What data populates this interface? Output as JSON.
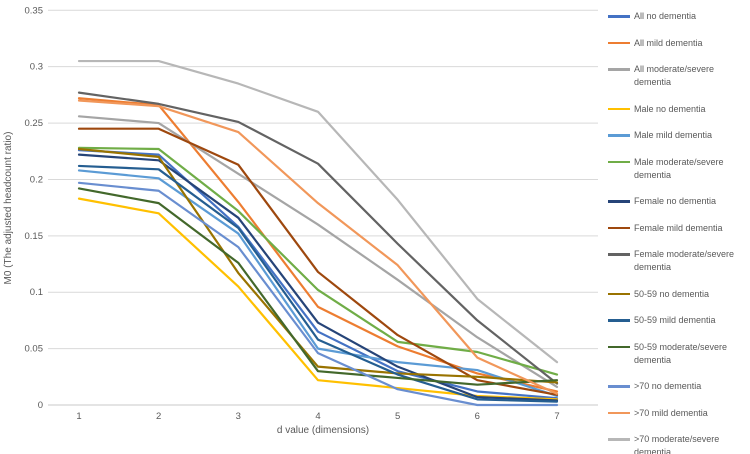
{
  "chart_data": {
    "type": "line",
    "title": "",
    "xlabel": "d value (dimensions)",
    "ylabel": "M0 (The adjusted headcount ratio)",
    "categories": [
      1,
      2,
      3,
      4,
      5,
      6,
      7
    ],
    "x_tick_labels": [
      "1",
      "2",
      "3",
      "4",
      "5",
      "6",
      "7"
    ],
    "y_tick_labels": [
      "0",
      "0.05",
      "0.1",
      "0.15",
      "0.2",
      "0.25",
      "0.3",
      "0.35"
    ],
    "ylim": [
      0,
      0.35
    ],
    "y_tick_step": 0.05,
    "grid": "horizontal",
    "legend_position": "right",
    "series": [
      {
        "name": "All no dementia",
        "color": "#4472C4",
        "values": [
          0.226,
          0.222,
          0.158,
          0.065,
          0.03,
          0.012,
          0.006
        ]
      },
      {
        "name": "All mild dementia",
        "color": "#ED7D31",
        "values": [
          0.272,
          0.266,
          0.18,
          0.087,
          0.052,
          0.028,
          0.012
        ]
      },
      {
        "name": "All moderate/severe dementia",
        "color": "#A5A5A5",
        "values": [
          0.256,
          0.25,
          0.205,
          0.16,
          0.111,
          0.06,
          0.016
        ]
      },
      {
        "name": "Male no dementia",
        "color": "#FFC000",
        "values": [
          0.183,
          0.17,
          0.105,
          0.022,
          0.015,
          0.008,
          0.005
        ]
      },
      {
        "name": "Male mild dementia",
        "color": "#5B9BD5",
        "values": [
          0.208,
          0.201,
          0.152,
          0.05,
          0.038,
          0.031,
          0.008
        ]
      },
      {
        "name": "Male moderate/severe dementia",
        "color": "#70AD47",
        "values": [
          0.228,
          0.227,
          0.172,
          0.102,
          0.056,
          0.047,
          0.027
        ]
      },
      {
        "name": "Female no dementia",
        "color": "#264478",
        "values": [
          0.222,
          0.217,
          0.166,
          0.073,
          0.034,
          0.007,
          0.004
        ]
      },
      {
        "name": "Female mild dementia",
        "color": "#9E480E",
        "values": [
          0.245,
          0.245,
          0.213,
          0.118,
          0.062,
          0.022,
          0.009
        ]
      },
      {
        "name": "Female moderate/severe dementia",
        "color": "#636363",
        "values": [
          0.277,
          0.267,
          0.251,
          0.214,
          0.143,
          0.075,
          0.019
        ]
      },
      {
        "name": "50-59 no dementia",
        "color": "#997300",
        "values": [
          0.227,
          0.22,
          0.117,
          0.034,
          0.028,
          0.025,
          0.02
        ]
      },
      {
        "name": "50-59 mild dementia",
        "color": "#255E91",
        "values": [
          0.212,
          0.209,
          0.157,
          0.058,
          0.027,
          0.005,
          0.003
        ]
      },
      {
        "name": "50-59 moderate/severe dementia",
        "color": "#43682B",
        "values": [
          0.192,
          0.179,
          0.126,
          0.03,
          0.024,
          0.018,
          0.022
        ]
      },
      {
        "name": ">70 no dementia",
        "color": "#698ED0",
        "values": [
          0.197,
          0.19,
          0.14,
          0.046,
          0.014,
          0.0,
          0.0
        ]
      },
      {
        "name": ">70 mild dementia",
        "color": "#F1975A",
        "values": [
          0.27,
          0.265,
          0.242,
          0.179,
          0.124,
          0.042,
          0.01
        ]
      },
      {
        "name": ">70 moderate/severe dementia",
        "color": "#B7B7B7",
        "values": [
          0.305,
          0.305,
          0.285,
          0.26,
          0.182,
          0.094,
          0.038
        ]
      }
    ]
  }
}
